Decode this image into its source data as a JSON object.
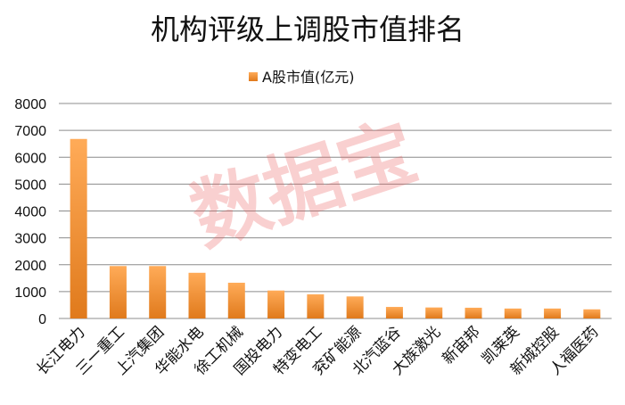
{
  "chart_data": {
    "type": "bar",
    "title": "机构评级上调股市值排名",
    "xlabel": "",
    "ylabel": "",
    "ylim": [
      0,
      8000
    ],
    "yticks": [
      0,
      1000,
      2000,
      3000,
      4000,
      5000,
      6000,
      7000,
      8000
    ],
    "grid": true,
    "legend_position": "top-center",
    "categories": [
      "长江电力",
      "三一重工",
      "上汽集团",
      "华能水电",
      "徐工机械",
      "国投电力",
      "特变电工",
      "兖矿能源",
      "北汽蓝谷",
      "大族激光",
      "新宙邦",
      "凯莱英",
      "新城控股",
      "人福医药"
    ],
    "series": [
      {
        "name": "A股市值(亿元)",
        "values": [
          6680,
          1950,
          1950,
          1700,
          1330,
          1040,
          900,
          820,
          430,
          410,
          400,
          370,
          370,
          340
        ]
      }
    ]
  },
  "colors": {
    "bar_light": "#ffab58",
    "bar_dark": "#e07a1c",
    "grid": "#8c8c8c",
    "axis": "#8c8c8c"
  },
  "watermark": {
    "text": "数据宝",
    "color": "#e85555"
  }
}
